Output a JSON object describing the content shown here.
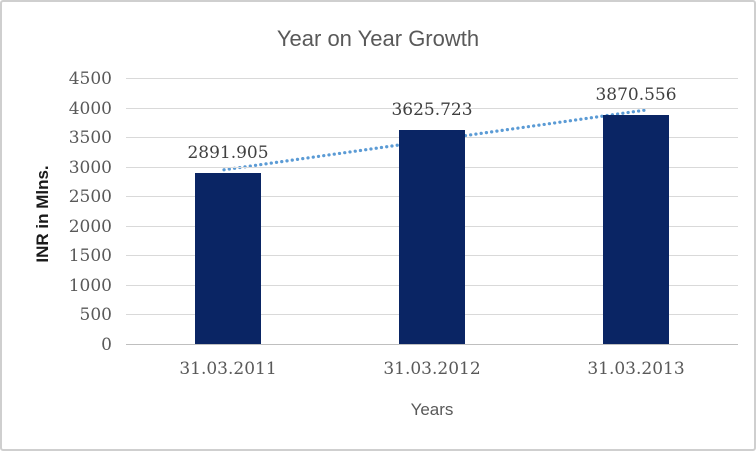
{
  "chart_data": {
    "type": "bar",
    "title": "Year on Year Growth",
    "xlabel": "Years",
    "ylabel": "INR in Mlns.",
    "categories": [
      "31.03.2011",
      "31.03.2012",
      "31.03.2013"
    ],
    "values": [
      2891.905,
      3625.723,
      3870.556
    ],
    "data_labels": [
      "2891.905",
      "3625.723",
      "3870.556"
    ],
    "ylim": [
      0,
      4500
    ],
    "ytick_step": 500,
    "yticks": [
      "0",
      "500",
      "1000",
      "1500",
      "2000",
      "2500",
      "3000",
      "3500",
      "4000",
      "4500"
    ],
    "grid": true,
    "legend": "none",
    "trendline": {
      "type": "linear",
      "style": "dotted"
    },
    "colors": {
      "bar": "#0a2564",
      "trendline": "#5b9bd5",
      "gridline": "#d9d9d9",
      "axis_line": "#bfbfbf",
      "title_text": "#595959",
      "tick_text": "#595959",
      "data_label_text": "#404040",
      "ylabel_text": "#1a1a1a",
      "background": "#ffffff",
      "border": "#cfcfcf"
    }
  }
}
